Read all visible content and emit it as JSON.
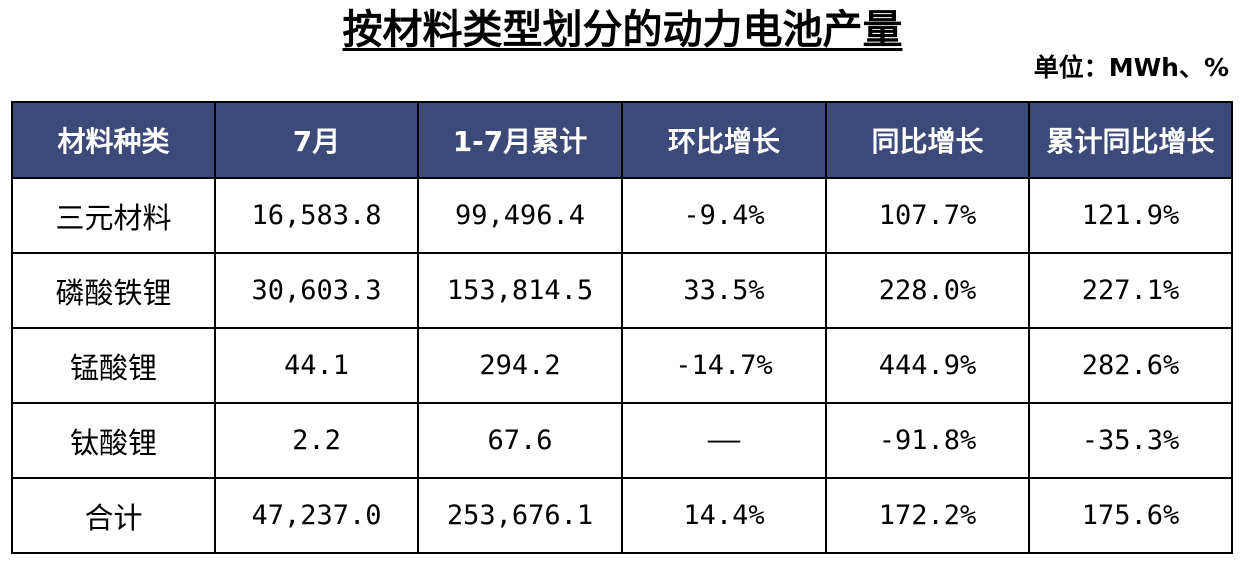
{
  "title": "按材料类型划分的动力电池产量",
  "unit_label": "单位：MWh、%",
  "table": {
    "headers": [
      "材料种类",
      "7月",
      "1-7月累计",
      "环比增长",
      "同比增长",
      "累计同比增长"
    ],
    "rows": [
      [
        "三元材料",
        "16,583.8",
        "99,496.4",
        "-9.4%",
        "107.7%",
        "121.9%"
      ],
      [
        "磷酸铁锂",
        "30,603.3",
        "153,814.5",
        "33.5%",
        "228.0%",
        "227.1%"
      ],
      [
        "锰酸锂",
        "44.1",
        "294.2",
        "-14.7%",
        "444.9%",
        "282.6%"
      ],
      [
        "钛酸锂",
        "2.2",
        "67.6",
        "——",
        "-91.8%",
        "-35.3%"
      ],
      [
        "合计",
        "47,237.0",
        "253,676.1",
        "14.4%",
        "172.2%",
        "175.6%"
      ]
    ]
  },
  "colors": {
    "header_background": "#3b4a78",
    "header_text": "#ffffff",
    "border": "#000000"
  }
}
